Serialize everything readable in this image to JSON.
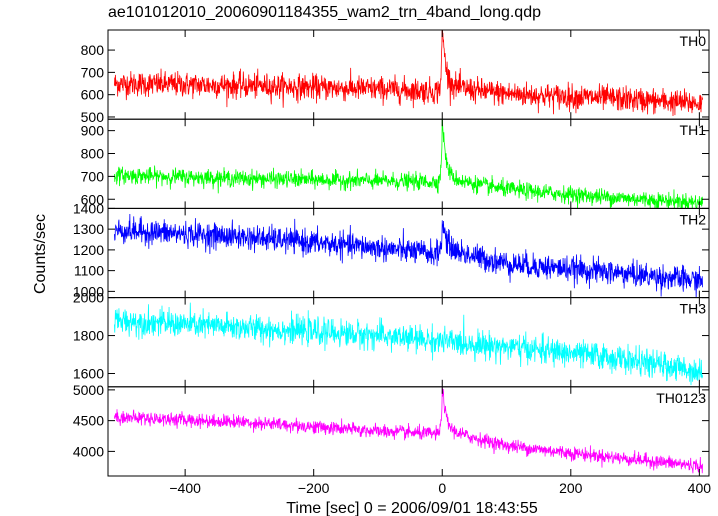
{
  "chart_data": {
    "type": "line",
    "title": "ae101012010_20060901184355_wam2_trn_4band_long.qdp",
    "xlabel": "Time [sec] 0 = 2006/09/01 18:43:55",
    "ylabel": "Counts/sec",
    "xlim": [
      -520,
      415
    ],
    "x_ticks": [
      -400,
      -200,
      0,
      200,
      400
    ],
    "x_tick_labels": [
      "−400",
      "−200",
      "0",
      "200",
      "400"
    ],
    "x_step": 0.5,
    "grid": false,
    "panels": [
      {
        "name": "TH0",
        "color": "#ff0000",
        "ylim": [
          490,
          890
        ],
        "y_ticks": [
          500,
          600,
          700,
          800
        ],
        "baseline": [
          [
            -510,
            650
          ],
          [
            -300,
            640
          ],
          [
            -100,
            625
          ],
          [
            -5,
            615
          ],
          [
            100,
            600
          ],
          [
            250,
            585
          ],
          [
            405,
            560
          ]
        ],
        "noise": 28,
        "flare": {
          "x": 0,
          "peak": 270,
          "rise": 1.5,
          "decay": 5,
          "tail_amp": 35,
          "tail_decay": 50
        }
      },
      {
        "name": "TH1",
        "color": "#00ff00",
        "ylim": [
          560,
          950
        ],
        "y_ticks": [
          600,
          700,
          800,
          900
        ],
        "baseline": [
          [
            -510,
            705
          ],
          [
            -300,
            690
          ],
          [
            -100,
            680
          ],
          [
            -5,
            675
          ],
          [
            100,
            640
          ],
          [
            250,
            610
          ],
          [
            405,
            585
          ]
        ],
        "noise": 18,
        "flare": {
          "x": 0,
          "peak": 260,
          "rise": 1.5,
          "decay": 5,
          "tail_amp": 30,
          "tail_decay": 50
        }
      },
      {
        "name": "TH2",
        "color": "#0000ff",
        "ylim": [
          970,
          1400
        ],
        "y_ticks": [
          1000,
          1100,
          1200,
          1300,
          1400
        ],
        "baseline": [
          [
            -510,
            1295
          ],
          [
            -300,
            1260
          ],
          [
            -100,
            1210
          ],
          [
            -5,
            1180
          ],
          [
            100,
            1130
          ],
          [
            250,
            1095
          ],
          [
            405,
            1050
          ]
        ],
        "noise": 30,
        "flare": {
          "x": 0,
          "peak": 120,
          "rise": 2,
          "decay": 6,
          "tail_amp": 40,
          "tail_decay": 50
        }
      },
      {
        "name": "TH3",
        "color": "#00ffff",
        "ylim": [
          1530,
          2000
        ],
        "y_ticks": [
          1600,
          1800,
          2000
        ],
        "baseline": [
          [
            -510,
            1880
          ],
          [
            -300,
            1840
          ],
          [
            -100,
            1800
          ],
          [
            100,
            1740
          ],
          [
            250,
            1690
          ],
          [
            405,
            1610
          ]
        ],
        "noise": 35,
        "flare": null
      },
      {
        "name": "TH0123",
        "color": "#ff00ff",
        "ylim": [
          3600,
          5050
        ],
        "y_ticks": [
          4000,
          4500,
          5000
        ],
        "baseline": [
          [
            -510,
            4560
          ],
          [
            -300,
            4470
          ],
          [
            -100,
            4330
          ],
          [
            -5,
            4280
          ],
          [
            100,
            4080
          ],
          [
            250,
            3920
          ],
          [
            405,
            3760
          ]
        ],
        "noise": 55,
        "flare": {
          "x": 0,
          "peak": 700,
          "rise": 1.5,
          "decay": 5,
          "tail_amp": 120,
          "tail_decay": 50
        }
      }
    ]
  }
}
